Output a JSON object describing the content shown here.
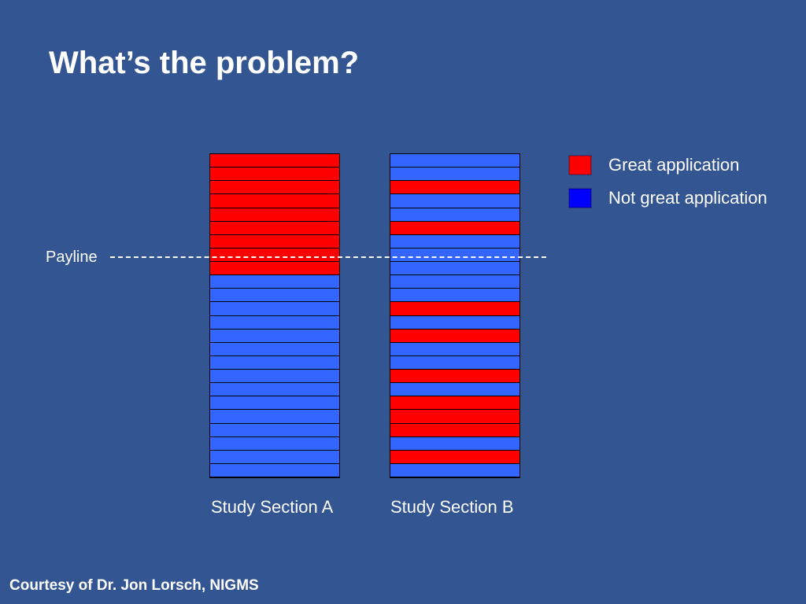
{
  "title": "What’s the problem?",
  "colors": {
    "background": "#335592",
    "great": "#ff0000",
    "not_great": "#3366ff"
  },
  "payline": {
    "label": "Payline"
  },
  "legend": {
    "great": "Great application",
    "not_great": "Not great application"
  },
  "columns": [
    {
      "label": "Study Section A",
      "rows": [
        "great",
        "great",
        "great",
        "great",
        "great",
        "great",
        "great",
        "great",
        "great",
        "not_great",
        "not_great",
        "not_great",
        "not_great",
        "not_great",
        "not_great",
        "not_great",
        "not_great",
        "not_great",
        "not_great",
        "not_great",
        "not_great",
        "not_great",
        "not_great",
        "not_great"
      ]
    },
    {
      "label": "Study Section B",
      "rows": [
        "not_great",
        "not_great",
        "great",
        "not_great",
        "not_great",
        "great",
        "not_great",
        "not_great",
        "not_great",
        "not_great",
        "not_great",
        "great",
        "not_great",
        "great",
        "not_great",
        "not_great",
        "great",
        "not_great",
        "great",
        "great",
        "great",
        "not_great",
        "great",
        "not_great"
      ]
    }
  ],
  "credit": "Courtesy of Dr. Jon Lorsch, NIGMS"
}
